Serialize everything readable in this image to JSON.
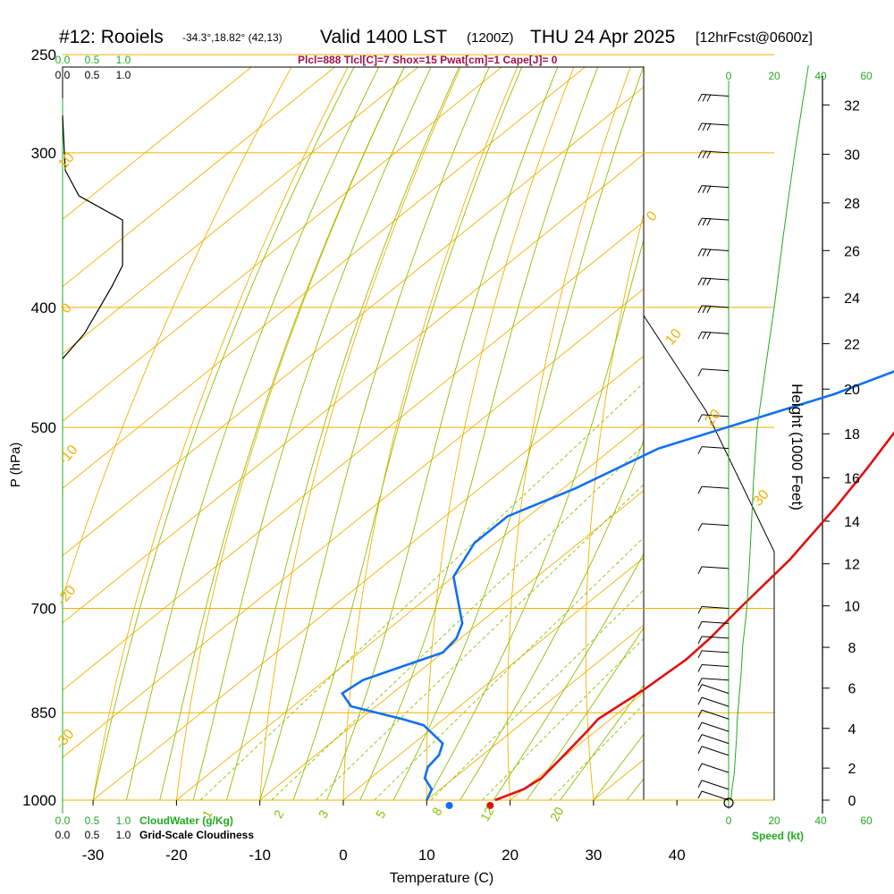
{
  "header": {
    "station": "#12: Rooiels",
    "coords": "-34.3°,18.82° (42,13)",
    "valid": "Valid 1400 LST",
    "utc": "(1200Z)",
    "date": "THU 24 Apr 2025",
    "forecast": "[12hrFcst@0600z]",
    "params": "Plcl=888 Tlcl[C]=7 Shox=15 Pwat[cm]=1 Cape[J]= 0"
  },
  "colors": {
    "isobar": "#f0b000",
    "dry_adiabat": "#f0b000",
    "moist_adiabat": "#8cc000",
    "mixing_ratio": "#8cc000",
    "temperature": "#e01010",
    "dewpoint": "#1070f0",
    "scale_green": "#22aa22",
    "params": "#a0104a"
  },
  "chart_data": {
    "type": "line",
    "title": "#12: Rooiels",
    "xlabel": "Temperature (C)",
    "ylabel": "P (hPa)",
    "y2label": "Height (1000 Feet)",
    "xlim": [
      -35,
      47
    ],
    "ylim_hpa": [
      1000,
      250
    ],
    "y_scale": "log",
    "x_ticks": [
      -30,
      -20,
      -10,
      0,
      10,
      20,
      30,
      40
    ],
    "pressure_ticks": [
      250,
      300,
      400,
      500,
      700,
      850,
      1000
    ],
    "height_ticks": [
      0,
      2,
      4,
      6,
      8,
      10,
      12,
      14,
      16,
      18,
      20,
      22,
      24,
      26,
      28,
      30,
      32
    ],
    "isotherm_labels": [
      "10",
      "0",
      "-10",
      "-20",
      "-30",
      "0",
      "10",
      "20",
      "30"
    ],
    "mixing_ratio_labels": [
      "1",
      "2",
      "3",
      "5",
      "8",
      "12",
      "20"
    ],
    "cloudwater_label": "CloudWater (g/Kg)",
    "cloudiness_label": "Grid-Scale Cloudiness",
    "speed_label": "Speed (kt)",
    "scale_fraction_labels": [
      "0.0",
      "0.5",
      "1.0"
    ],
    "speed_scale_labels": [
      "0",
      "20",
      "40",
      "60"
    ],
    "grid": true,
    "legend": "none",
    "series": [
      {
        "name": "Temperature",
        "points": [
          [
            18.2,
            1000
          ],
          [
            20,
            980
          ],
          [
            20.5,
            960
          ],
          [
            19.8,
            920
          ],
          [
            19,
            880
          ],
          [
            18.5,
            860
          ],
          [
            19.6,
            815
          ],
          [
            20.2,
            770
          ],
          [
            19.9,
            740
          ],
          [
            19,
            700
          ],
          [
            17.8,
            640
          ],
          [
            15.5,
            580
          ],
          [
            13.5,
            540
          ],
          [
            10.5,
            490
          ],
          [
            8,
            455
          ],
          [
            7.2,
            440
          ],
          [
            7.0,
            420
          ],
          [
            5.2,
            390
          ],
          [
            3.0,
            360
          ],
          [
            0.5,
            320
          ],
          [
            -2.0,
            290
          ],
          [
            -3.5,
            275
          ]
        ]
      },
      {
        "name": "Dewpoint",
        "points": [
          [
            10,
            1000
          ],
          [
            9,
            980
          ],
          [
            6.5,
            960
          ],
          [
            5.2,
            940
          ],
          [
            4.8,
            920
          ],
          [
            3.5,
            900
          ],
          [
            -1.5,
            870
          ],
          [
            -5,
            860
          ],
          [
            -13,
            840
          ],
          [
            -16,
            820
          ],
          [
            -15.5,
            800
          ],
          [
            -13.5,
            785
          ],
          [
            -10,
            760
          ],
          [
            -10.5,
            740
          ],
          [
            -12,
            720
          ],
          [
            -20,
            660
          ],
          [
            -22.5,
            620
          ],
          [
            -22.5,
            590
          ],
          [
            -18.5,
            560
          ],
          [
            -14.5,
            520
          ],
          [
            -1.5,
            470
          ],
          [
            6.5,
            430
          ],
          [
            7.5,
            400
          ],
          [
            5.5,
            370
          ],
          [
            3,
            345
          ],
          [
            -0.5,
            320
          ],
          [
            -4,
            290
          ],
          [
            -6.5,
            265
          ],
          [
            -8.5,
            250
          ]
        ]
      },
      {
        "name": "Cloudiness",
        "points": [
          [
            0.0,
            280
          ],
          [
            0.05,
            310
          ],
          [
            0.3,
            325
          ],
          [
            1.1,
            340
          ],
          [
            1.1,
            370
          ],
          [
            0.9,
            385
          ],
          [
            0.4,
            420
          ],
          [
            0.0,
            440
          ]
        ]
      }
    ],
    "surface": {
      "temperature": 17.5,
      "dewpoint": 12.5
    },
    "wind_speed_profile_kt": [
      [
        1.0,
        1000
      ],
      [
        1.5,
        980
      ],
      [
        2.5,
        950
      ],
      [
        3.0,
        920
      ],
      [
        3.5,
        890
      ],
      [
        3.8,
        860
      ],
      [
        4.5,
        830
      ],
      [
        5.5,
        790
      ],
      [
        6.2,
        750
      ],
      [
        8,
        700
      ],
      [
        9,
        650
      ],
      [
        10,
        600
      ],
      [
        11,
        550
      ],
      [
        12.5,
        500
      ],
      [
        16,
        450
      ],
      [
        20,
        400
      ],
      [
        24,
        350
      ],
      [
        29,
        300
      ],
      [
        35,
        255
      ]
    ]
  }
}
